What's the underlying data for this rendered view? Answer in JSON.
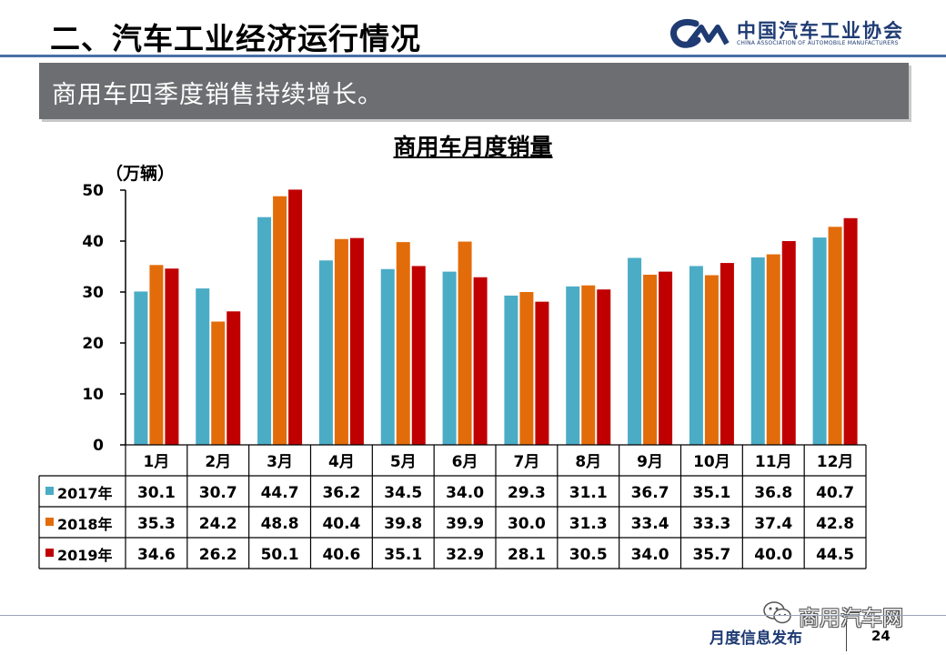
{
  "header": {
    "section_title": "二、汽车工业经济运行情况"
  },
  "logo": {
    "mark": "CAM",
    "cn": "中国汽车工业协会",
    "en": "CHINA ASSOCIATION OF AUTOMOBILE MANUFACTURERS"
  },
  "banner": {
    "text": "商用车四季度销售持续增长。"
  },
  "footer": {
    "label": "月度信息发布",
    "page": "24"
  },
  "watermark": {
    "text": "商用汽车网"
  },
  "colors": {
    "2017年": "#4bacc6",
    "2018年": "#e36c0a",
    "2019年": "#c00000",
    "rule": "#4a6fa5",
    "banner": "#6d6e71"
  },
  "chart_data": {
    "type": "bar",
    "title": "商用车月度销量",
    "unit_label": "（万辆）",
    "categories": [
      "1月",
      "2月",
      "3月",
      "4月",
      "5月",
      "6月",
      "7月",
      "8月",
      "9月",
      "10月",
      "11月",
      "12月"
    ],
    "series": [
      {
        "name": "2017年",
        "values": [
          30.1,
          30.7,
          44.7,
          36.2,
          34.5,
          34.0,
          29.3,
          31.1,
          36.7,
          35.1,
          36.8,
          40.7
        ]
      },
      {
        "name": "2018年",
        "values": [
          35.3,
          24.2,
          48.8,
          40.4,
          39.8,
          39.9,
          30.0,
          31.3,
          33.4,
          33.3,
          37.4,
          42.8
        ]
      },
      {
        "name": "2019年",
        "values": [
          34.6,
          26.2,
          50.1,
          40.6,
          35.1,
          32.9,
          28.1,
          30.5,
          34.0,
          35.7,
          40.0,
          44.5
        ]
      }
    ],
    "yticks": [
      0,
      10,
      20,
      30,
      40,
      50
    ],
    "ylim": [
      0,
      50
    ],
    "grid": false,
    "legend": "data-table"
  }
}
